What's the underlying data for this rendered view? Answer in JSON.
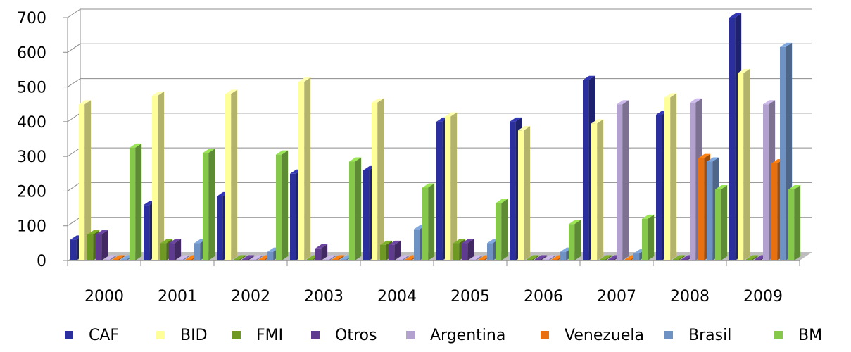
{
  "chart_data": {
    "type": "bar",
    "title": "",
    "xlabel": "",
    "ylabel": "",
    "ylim": [
      0,
      700
    ],
    "yticks": [
      0,
      100,
      200,
      300,
      400,
      500,
      600,
      700
    ],
    "grid": true,
    "legend_position": "bottom",
    "categories": [
      "2000",
      "2001",
      "2002",
      "2003",
      "2004",
      "2005",
      "2006",
      "2007",
      "2008",
      "2009"
    ],
    "series": [
      {
        "name": "CAF",
        "color": "#2B2F9E",
        "values": [
          60,
          160,
          185,
          250,
          260,
          400,
          400,
          520,
          420,
          700
        ]
      },
      {
        "name": "BID",
        "color": "#FFFF99",
        "values": [
          450,
          475,
          480,
          515,
          455,
          415,
          375,
          395,
          470,
          540
        ]
      },
      {
        "name": "FMI",
        "color": "#6E9A24",
        "values": [
          75,
          50,
          0,
          0,
          45,
          50,
          0,
          0,
          0,
          0
        ]
      },
      {
        "name": "Otros",
        "color": "#5E3B8E",
        "values": [
          75,
          50,
          0,
          35,
          45,
          50,
          0,
          0,
          0,
          0
        ]
      },
      {
        "name": "Argentina",
        "color": "#B3A2D0",
        "values": [
          0,
          0,
          0,
          0,
          0,
          0,
          0,
          450,
          455,
          450
        ]
      },
      {
        "name": "Venezuela",
        "color": "#E8700F",
        "values": [
          0,
          0,
          0,
          0,
          0,
          0,
          0,
          0,
          295,
          280
        ]
      },
      {
        "name": "Brasil",
        "color": "#6F92C4",
        "values": [
          0,
          50,
          25,
          0,
          90,
          50,
          25,
          20,
          285,
          615
        ]
      },
      {
        "name": "BM",
        "color": "#86C84A",
        "values": [
          325,
          310,
          305,
          285,
          210,
          165,
          105,
          120,
          205,
          205
        ]
      }
    ]
  }
}
